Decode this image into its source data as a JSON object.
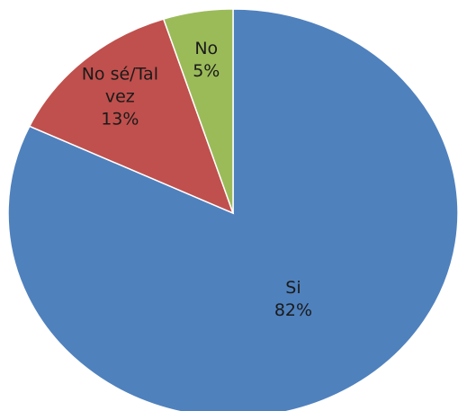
{
  "chart_data": {
    "type": "pie",
    "categories": [
      "Si",
      "No sé/Tal vez",
      "No"
    ],
    "values": [
      82,
      13,
      5
    ],
    "value_labels": [
      "82%",
      "13%",
      "5%"
    ],
    "colors": [
      "#4f81bd",
      "#c0504d",
      "#9bbb59"
    ]
  }
}
